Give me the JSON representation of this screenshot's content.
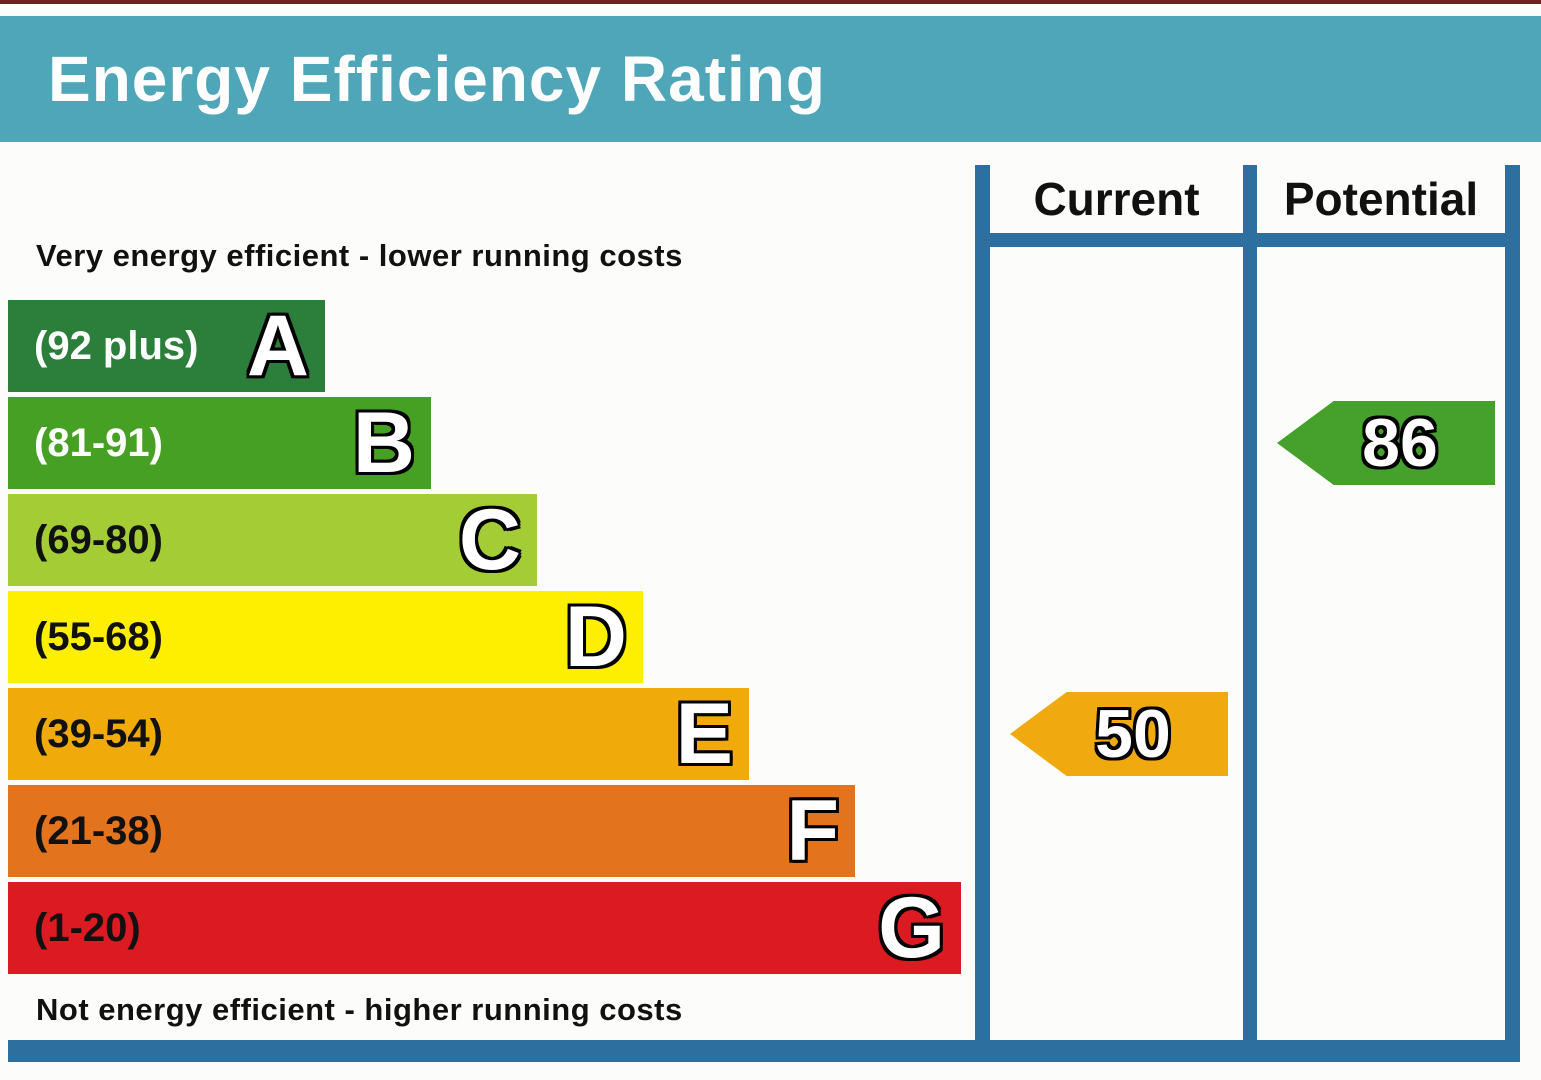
{
  "header": {
    "title": "Energy Efficiency Rating"
  },
  "table": {
    "current_label": "Current",
    "potential_label": "Potential"
  },
  "notes": {
    "top": "Very energy efficient - lower running costs",
    "bottom": "Not energy efficient - higher running costs"
  },
  "bands": [
    {
      "letter": "A",
      "range": "(92 plus)",
      "color": "#2b7f3b",
      "label_color": "#ffffff"
    },
    {
      "letter": "B",
      "range": "(81-91)",
      "color": "#45a023",
      "label_color": "#ffffff"
    },
    {
      "letter": "C",
      "range": "(69-80)",
      "color": "#a3cc35",
      "label_color": "#111111"
    },
    {
      "letter": "D",
      "range": "(55-68)",
      "color": "#feef00",
      "label_color": "#111111"
    },
    {
      "letter": "E",
      "range": "(39-54)",
      "color": "#f0ab0b",
      "label_color": "#111111"
    },
    {
      "letter": "F",
      "range": "(21-38)",
      "color": "#e4731e",
      "label_color": "#111111"
    },
    {
      "letter": "G",
      "range": "(1-20)",
      "color": "#db1a21",
      "label_color": "#111111"
    }
  ],
  "ratings": {
    "current": {
      "value": "50",
      "band": "E",
      "color": "#f0a90e"
    },
    "potential": {
      "value": "86",
      "band": "B",
      "color": "#45a02c"
    }
  },
  "colors": {
    "header_bg": "#4fa6b8",
    "border_blue": "#2d6f9e",
    "top_line": "#6e1f1f",
    "page_bg": "#fcfdfa"
  },
  "chart_data": {
    "type": "bar",
    "title": "Energy Efficiency Rating",
    "categories": [
      "A",
      "B",
      "C",
      "D",
      "E",
      "F",
      "G"
    ],
    "band_ranges": [
      "92 plus",
      "81-91",
      "69-80",
      "55-68",
      "39-54",
      "21-38",
      "1-20"
    ],
    "band_colors": [
      "#2b7f3b",
      "#45a023",
      "#a3cc35",
      "#feef00",
      "#f0ab0b",
      "#e4731e",
      "#db1a21"
    ],
    "series": [
      {
        "name": "Current",
        "value": 50,
        "band": "E",
        "color": "#f0a90e"
      },
      {
        "name": "Potential",
        "value": 86,
        "band": "B",
        "color": "#45a02c"
      }
    ],
    "scale": [
      1,
      100
    ],
    "top_annotation": "Very energy efficient - lower running costs",
    "bottom_annotation": "Not energy efficient - higher running costs",
    "legend_position": "column headers top-right"
  }
}
